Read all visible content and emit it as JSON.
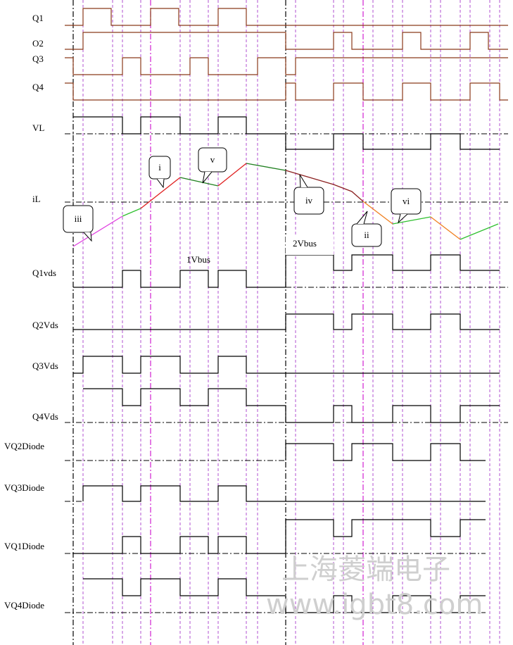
{
  "signals": [
    "Q1",
    "O2",
    "Q3",
    "Q4",
    "VL",
    "iL",
    "Q1vds",
    "Q2Vds",
    "Q3Vds",
    "Q4Vds",
    "VQ2Diode",
    "VQ3Diode",
    "VQ1Diode",
    "VQ4Diode"
  ],
  "callouts": [
    "iii",
    "i",
    "v",
    "iv",
    "ii",
    "vi"
  ],
  "bus_labels": [
    "1Vbus",
    "2Vbus"
  ],
  "watermark": {
    "company": "上海菱端电子",
    "url": "www.igbt8.com"
  }
}
